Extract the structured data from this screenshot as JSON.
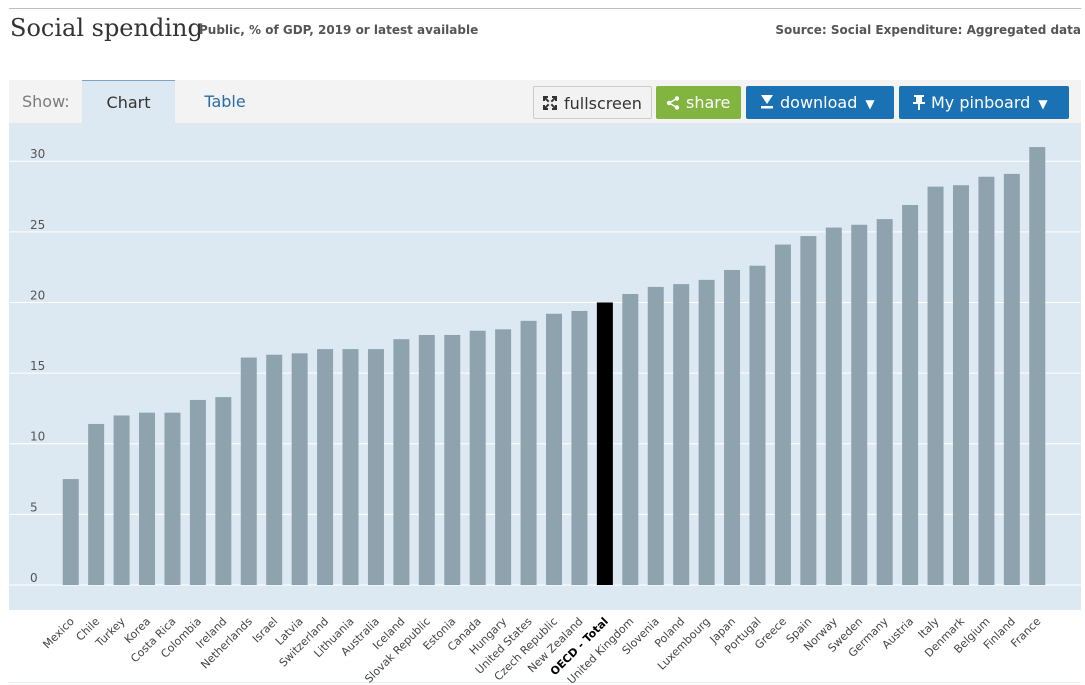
{
  "header": {
    "title": "Social spending",
    "subtitle": "Public, % of GDP, 2019 or latest available",
    "source": "Source: Social Expenditure: Aggregated data"
  },
  "toolbar": {
    "show_label": "Show:",
    "tabs": [
      {
        "label": "Chart",
        "active": true
      },
      {
        "label": "Table",
        "active": false
      }
    ],
    "fullscreen_label": "fullscreen",
    "share_label": "share",
    "download_label": "download",
    "pinboard_label": "My pinboard",
    "icons": {
      "fullscreen": "expand-icon",
      "share": "share-icon",
      "download": "download-icon",
      "pinboard": "pin-icon"
    }
  },
  "colors": {
    "bar": "#8fa3ae",
    "highlight_bar": "#000000",
    "plot_background": "#dde9f2",
    "share_button": "#82b440",
    "download_button": "#1a72b5"
  },
  "chart_data": {
    "type": "bar",
    "title": "Social spending",
    "subtitle": "Public, % of GDP, 2019 or latest available",
    "xlabel": "",
    "ylabel": "",
    "ylim": [
      0,
      31.5
    ],
    "yticks": [
      0,
      5,
      10,
      15,
      20,
      25,
      30
    ],
    "grid": true,
    "highlight": "OECD - Total",
    "categories": [
      "Mexico",
      "Chile",
      "Turkey",
      "Korea",
      "Costa Rica",
      "Colombia",
      "Ireland",
      "Netherlands",
      "Israel",
      "Latvia",
      "Switzerland",
      "Lithuania",
      "Australia",
      "Iceland",
      "Slovak Republic",
      "Estonia",
      "Canada",
      "Hungary",
      "United States",
      "Czech Republic",
      "New Zealand",
      "OECD - Total",
      "United Kingdom",
      "Slovenia",
      "Poland",
      "Luxembourg",
      "Japan",
      "Portugal",
      "Greece",
      "Spain",
      "Norway",
      "Sweden",
      "Germany",
      "Austria",
      "Italy",
      "Denmark",
      "Belgium",
      "Finland",
      "France"
    ],
    "values": [
      7.5,
      11.4,
      12.0,
      12.2,
      12.2,
      13.1,
      13.3,
      16.1,
      16.3,
      16.4,
      16.7,
      16.7,
      16.7,
      17.4,
      17.7,
      17.7,
      18.0,
      18.1,
      18.7,
      19.2,
      19.4,
      20.0,
      20.6,
      21.1,
      21.3,
      21.6,
      22.3,
      22.6,
      24.1,
      24.7,
      25.3,
      25.5,
      25.9,
      26.9,
      28.2,
      28.3,
      28.9,
      29.1,
      31.0
    ]
  }
}
